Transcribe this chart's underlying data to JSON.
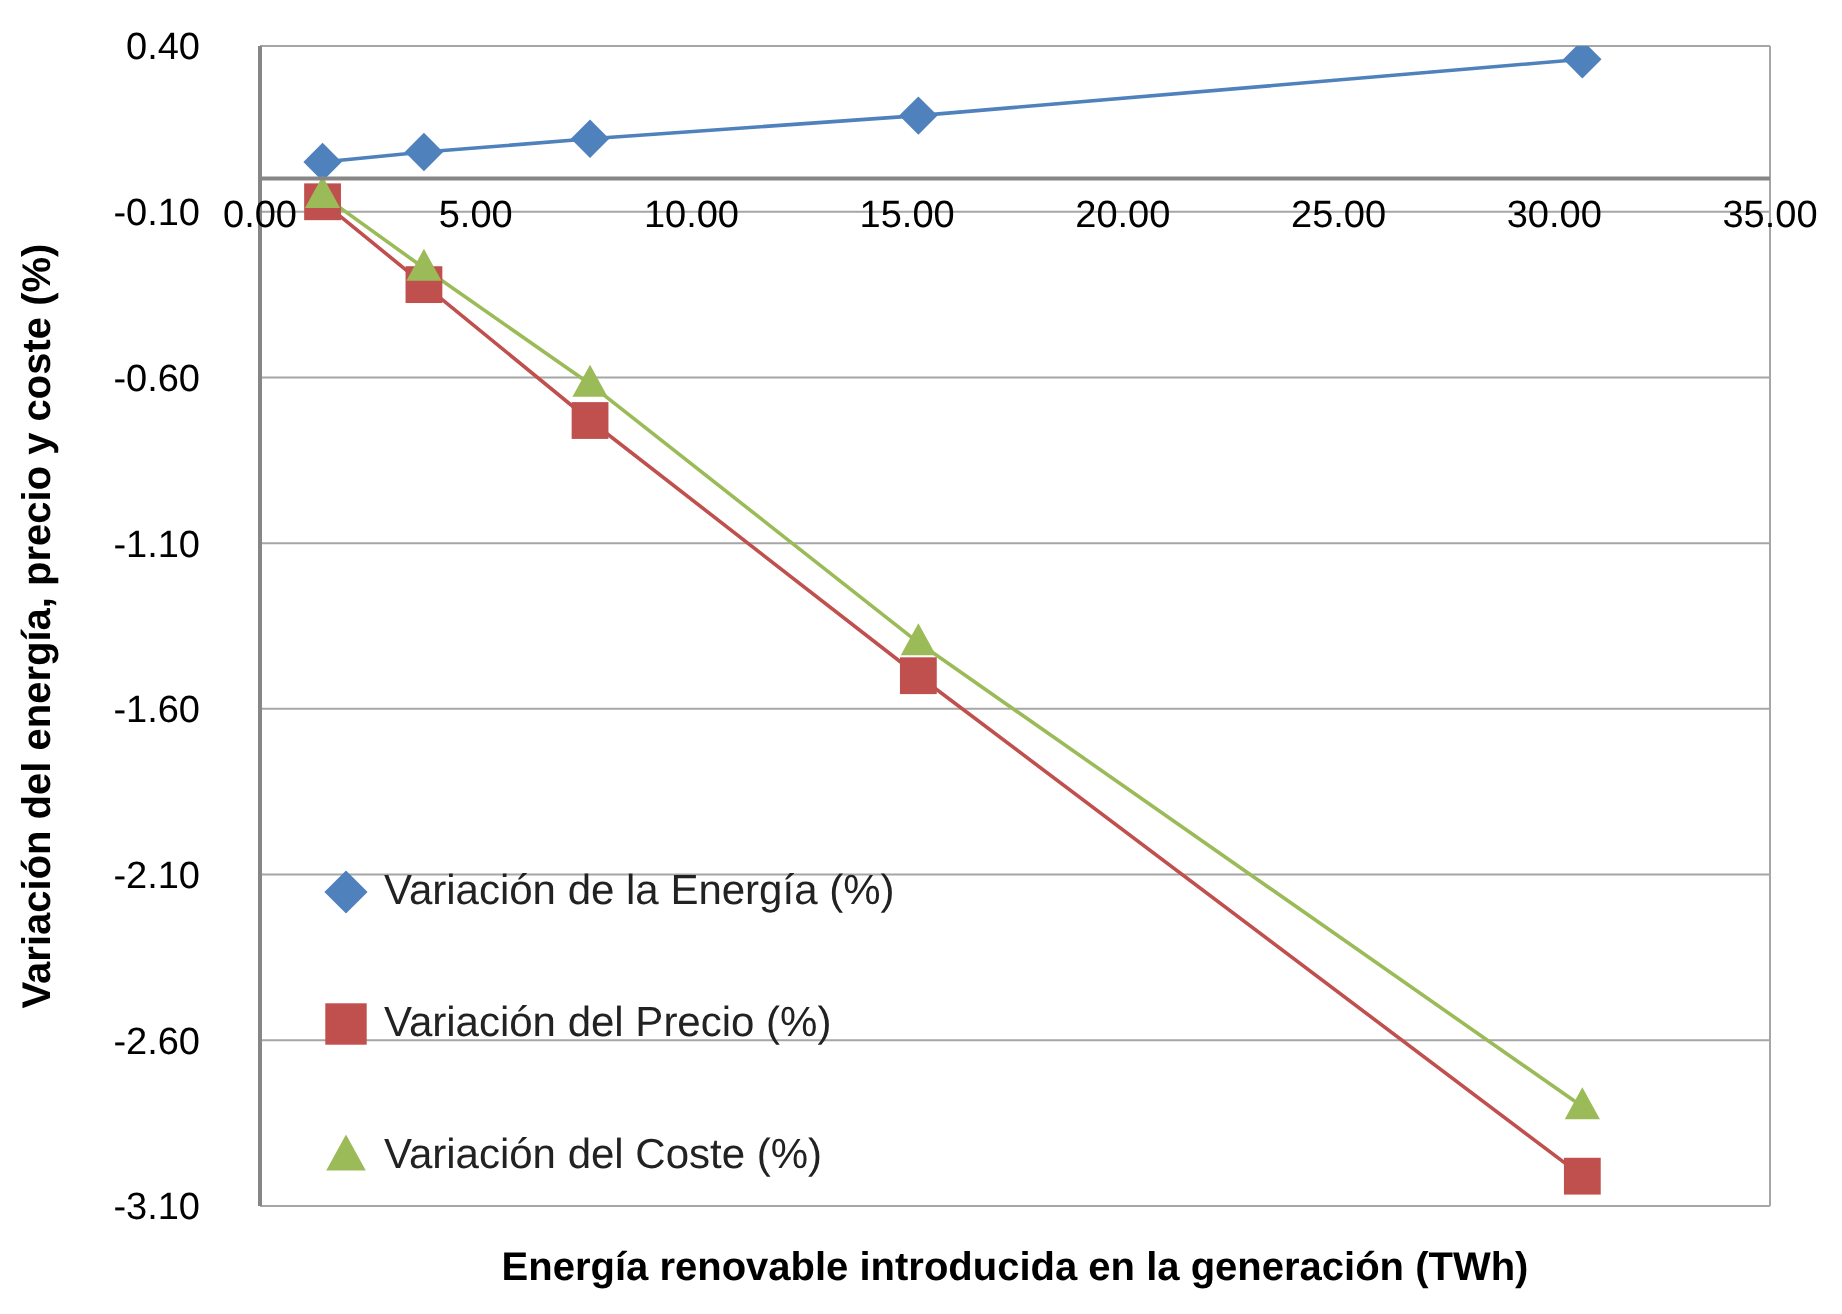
{
  "chart_data": {
    "type": "line",
    "xlabel": "Energía renovable introducida en la generación (TWh)",
    "ylabel": "Variación del energía, precio y coste (%)",
    "x": [
      1.45,
      3.8,
      7.65,
      15.26,
      30.65
    ],
    "series": [
      {
        "name": "Variación de la Energía (%)",
        "color": "#4f81bd",
        "marker": "diamond",
        "values": [
          0.05,
          0.08,
          0.12,
          0.19,
          0.36
        ]
      },
      {
        "name": "Variación del Precio (%)",
        "color": "#c0504d",
        "marker": "square",
        "values": [
          -0.07,
          -0.32,
          -0.73,
          -1.5,
          -3.01
        ]
      },
      {
        "name": "Variación del Coste (%)",
        "color": "#9bbb59",
        "marker": "triangle",
        "values": [
          -0.05,
          -0.27,
          -0.62,
          -1.4,
          -2.8
        ]
      }
    ],
    "xlim": [
      0,
      35
    ],
    "xticks": [
      {
        "value": 0,
        "label": "0.00"
      },
      {
        "value": 5,
        "label": "5.00"
      },
      {
        "value": 10,
        "label": "10.00"
      },
      {
        "value": 15,
        "label": "15.00"
      },
      {
        "value": 20,
        "label": "20.00"
      },
      {
        "value": 25,
        "label": "25.00"
      },
      {
        "value": 30,
        "label": "30.00"
      },
      {
        "value": 35,
        "label": "35.00"
      }
    ],
    "ylim": [
      -3.1,
      0.4
    ],
    "yticks": [
      {
        "value": -3.1,
        "label": "-3.10"
      },
      {
        "value": -2.6,
        "label": "-2.60"
      },
      {
        "value": -2.1,
        "label": "-2.10"
      },
      {
        "value": -1.6,
        "label": "-1.60"
      },
      {
        "value": -1.1,
        "label": "-1.10"
      },
      {
        "value": -0.6,
        "label": "-0.60"
      },
      {
        "value": -0.1,
        "label": "-0.10"
      },
      {
        "value": 0.4,
        "label": "0.40"
      }
    ],
    "grid": true,
    "legend": "bottom left",
    "line_style": "solid"
  }
}
